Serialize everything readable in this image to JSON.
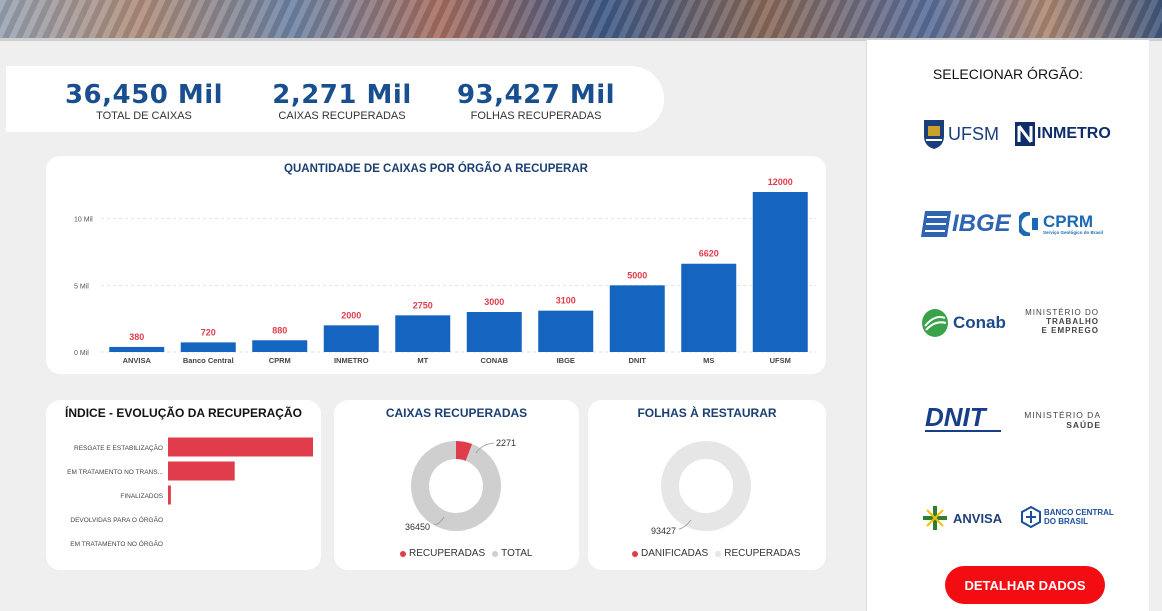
{
  "kpis": [
    {
      "value": "36,450 Mil",
      "label": "TOTAL DE CAIXAS"
    },
    {
      "value": "2,271 Mil",
      "label": "CAIXAS RECUPERADAS"
    },
    {
      "value": "93,427 Mil",
      "label": "FOLHAS RECUPERADAS"
    }
  ],
  "sidebar": {
    "select_label": "SELECIONAR ÓRGÃO:",
    "logos": {
      "ufsm": "UFSM",
      "inmetro": "INMETRO",
      "ibge": "IBGE",
      "cprm": "CPRM",
      "cprm_sub": "Serviço Geológico do Brasil",
      "conab": "Conab",
      "mte": [
        "MINISTÉRIO DO",
        "TRABALHO",
        "E EMPREGO"
      ],
      "dnit": "DNIT",
      "ms": [
        "MINISTÉRIO DA",
        "SAÚDE"
      ],
      "anvisa": "ANVISA",
      "bcb": [
        "BANCO CENTRAL",
        "DO BRASIL"
      ]
    },
    "button_label": "DETALHAR DADOS"
  },
  "colors": {
    "bar": "#1565c0",
    "accent": "#e03c4c",
    "kpi": "#1a4f8f",
    "title": "#1b3f73",
    "button": "#f30d12",
    "donut_gray": "#cfcfcf",
    "donut_light": "#e6e6e6"
  },
  "chart_data": [
    {
      "type": "bar",
      "title": "QUANTIDADE DE CAIXAS POR ÓRGÃO A RECUPERAR",
      "categories": [
        "ANVISA",
        "Banco Central",
        "CPRM",
        "INMETRO",
        "MT",
        "CONAB",
        "IBGE",
        "DNIT",
        "MS",
        "UFSM"
      ],
      "values": [
        380,
        720,
        880,
        2000,
        2750,
        3000,
        3100,
        5000,
        6620,
        12000
      ],
      "ylim": [
        0,
        12000
      ],
      "yticks": [
        0,
        5000,
        10000
      ],
      "ytick_labels": [
        "0 Mil",
        "5 Mil",
        "10 Mil"
      ],
      "data_labels": [
        "380",
        "720",
        "880",
        "2000",
        "2750",
        "3000",
        "3100",
        "5000",
        "6620",
        "12000"
      ]
    },
    {
      "type": "bar",
      "orientation": "horizontal",
      "title": "ÍNDICE - EVOLUÇÃO DA RECUPERAÇÃO",
      "categories": [
        "RESGATE E ESTABILIZAÇÃO",
        "EM TRATAMENTO NO TRANS...",
        "FINALIZADOS",
        "DEVOLVIDAS PARA O ÓRGÃO",
        "EM TRATAMENTO NO ÓRGÃO"
      ],
      "values": [
        100,
        46,
        2,
        0,
        0
      ]
    },
    {
      "type": "pie",
      "donut": true,
      "title": "CAIXAS RECUPERADAS",
      "series": [
        {
          "name": "RECUPERADAS",
          "value": 2271,
          "label": "2271"
        },
        {
          "name": "TOTAL",
          "value": 36450,
          "label": "36450"
        }
      ]
    },
    {
      "type": "pie",
      "donut": true,
      "title": "FOLHAS À RESTAURAR",
      "series": [
        {
          "name": "DANIFICADAS",
          "value": 0,
          "label": ""
        },
        {
          "name": "RECUPERADAS",
          "value": 93427,
          "label": "93427"
        }
      ]
    }
  ]
}
